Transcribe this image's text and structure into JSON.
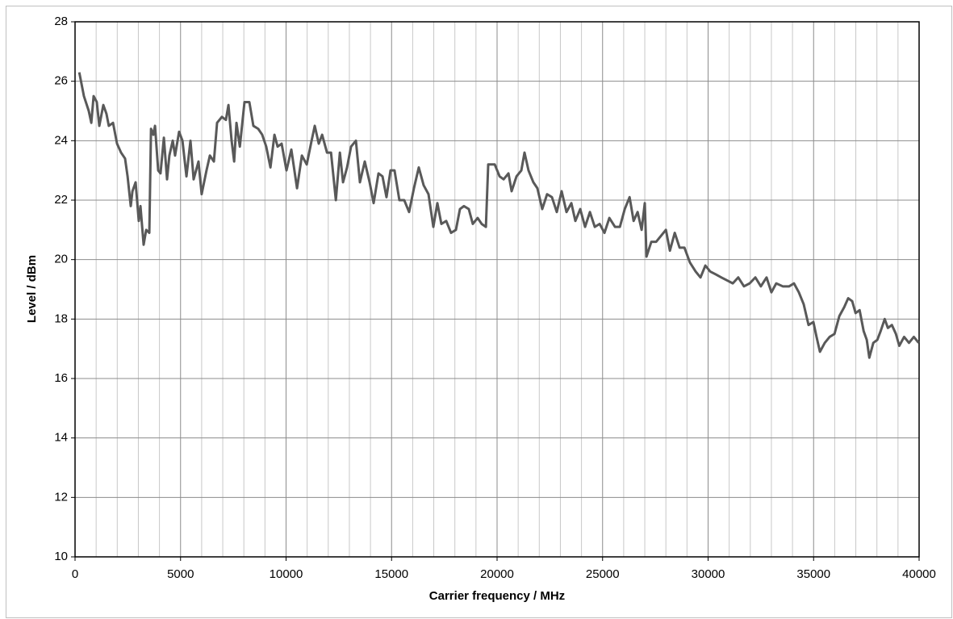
{
  "chart_data": {
    "type": "line",
    "xlabel": "Carrier frequency / MHz",
    "ylabel": "Level / dBm",
    "xlim": [
      0,
      40000
    ],
    "ylim": [
      10,
      28
    ],
    "xticks": [
      0,
      5000,
      10000,
      15000,
      20000,
      25000,
      30000,
      35000,
      40000
    ],
    "yticks": [
      10,
      12,
      14,
      16,
      18,
      20,
      22,
      24,
      26,
      28
    ],
    "grid": true,
    "series": [
      {
        "color": "#595959",
        "x": [
          200,
          420,
          650,
          770,
          880,
          1030,
          1150,
          1340,
          1490,
          1600,
          1800,
          1990,
          2180,
          2370,
          2490,
          2640,
          2720,
          2870,
          3020,
          3100,
          3250,
          3370,
          3520,
          3600,
          3710,
          3790,
          3940,
          4050,
          4210,
          4360,
          4470,
          4630,
          4740,
          4930,
          5090,
          5280,
          5470,
          5620,
          5850,
          6000,
          6230,
          6390,
          6580,
          6730,
          6960,
          7150,
          7270,
          7420,
          7540,
          7650,
          7810,
          8030,
          8260,
          8450,
          8680,
          8870,
          9060,
          9260,
          9450,
          9600,
          9790,
          10020,
          10250,
          10520,
          10750,
          10980,
          11210,
          11360,
          11550,
          11710,
          11940,
          12130,
          12360,
          12550,
          12700,
          12890,
          13080,
          13310,
          13500,
          13730,
          13960,
          14150,
          14380,
          14570,
          14760,
          14950,
          15140,
          15370,
          15600,
          15830,
          16060,
          16290,
          16520,
          16750,
          16980,
          17170,
          17360,
          17590,
          17820,
          18050,
          18240,
          18430,
          18660,
          18850,
          19080,
          19270,
          19470,
          19580,
          19890,
          20120,
          20310,
          20540,
          20690,
          20920,
          21150,
          21300,
          21490,
          21720,
          21910,
          22140,
          22370,
          22600,
          22830,
          23060,
          23290,
          23520,
          23710,
          23940,
          24170,
          24400,
          24630,
          24860,
          25090,
          25320,
          25590,
          25820,
          26050,
          26280,
          26470,
          26660,
          26850,
          27000,
          27080,
          27310,
          27540,
          27770,
          28000,
          28190,
          28420,
          28650,
          28880,
          29140,
          29410,
          29640,
          29870,
          30100,
          30370,
          30630,
          30900,
          31170,
          31430,
          31700,
          31970,
          32240,
          32500,
          32770,
          33000,
          33230,
          33540,
          33840,
          34070,
          34300,
          34530,
          34760,
          34990,
          35140,
          35300,
          35530,
          35760,
          35990,
          36220,
          36450,
          36640,
          36830,
          36990,
          37180,
          37370,
          37520,
          37640,
          37830,
          38020,
          38180,
          38370,
          38520,
          38710,
          38900,
          39060,
          39290,
          39520,
          39750,
          39980
        ],
        "values": [
          26.3,
          25.5,
          25.0,
          24.6,
          25.5,
          25.3,
          24.5,
          25.2,
          24.9,
          24.5,
          24.6,
          23.9,
          23.6,
          23.4,
          22.8,
          21.8,
          22.3,
          22.6,
          21.3,
          21.8,
          20.5,
          21.0,
          20.9,
          24.4,
          24.2,
          24.5,
          23.0,
          22.9,
          24.1,
          22.7,
          23.5,
          24.0,
          23.5,
          24.3,
          24.0,
          22.8,
          24.0,
          22.7,
          23.3,
          22.2,
          23.0,
          23.5,
          23.3,
          24.6,
          24.8,
          24.7,
          25.2,
          24.0,
          23.3,
          24.6,
          23.8,
          25.3,
          25.3,
          24.5,
          24.4,
          24.2,
          23.8,
          23.1,
          24.2,
          23.8,
          23.9,
          23.0,
          23.7,
          22.4,
          23.5,
          23.2,
          24.0,
          24.5,
          23.9,
          24.2,
          23.6,
          23.6,
          22.0,
          23.6,
          22.6,
          23.1,
          23.8,
          24.0,
          22.6,
          23.3,
          22.6,
          21.9,
          22.9,
          22.8,
          22.1,
          23.0,
          23.0,
          22.0,
          22.0,
          21.6,
          22.4,
          23.1,
          22.5,
          22.2,
          21.1,
          21.9,
          21.2,
          21.3,
          20.9,
          21.0,
          21.7,
          21.8,
          21.7,
          21.2,
          21.4,
          21.2,
          21.1,
          23.2,
          23.2,
          22.8,
          22.7,
          22.9,
          22.3,
          22.8,
          23.0,
          23.6,
          23.0,
          22.6,
          22.4,
          21.7,
          22.2,
          22.1,
          21.6,
          22.3,
          21.6,
          21.9,
          21.3,
          21.7,
          21.1,
          21.6,
          21.1,
          21.2,
          20.9,
          21.4,
          21.1,
          21.1,
          21.7,
          22.1,
          21.3,
          21.6,
          21.0,
          21.9,
          20.1,
          20.6,
          20.6,
          20.8,
          21.0,
          20.3,
          20.9,
          20.4,
          20.4,
          19.9,
          19.6,
          19.4,
          19.8,
          19.6,
          19.5,
          19.4,
          19.3,
          19.2,
          19.4,
          19.1,
          19.2,
          19.4,
          19.1,
          19.4,
          18.9,
          19.2,
          19.1,
          19.1,
          19.2,
          18.9,
          18.5,
          17.8,
          17.9,
          17.4,
          16.9,
          17.2,
          17.4,
          17.5,
          18.1,
          18.4,
          18.7,
          18.6,
          18.2,
          18.3,
          17.6,
          17.3,
          16.7,
          17.2,
          17.3,
          17.6,
          18.0,
          17.7,
          17.8,
          17.5,
          17.1,
          17.4,
          17.2,
          17.4,
          17.2
        ]
      }
    ]
  }
}
